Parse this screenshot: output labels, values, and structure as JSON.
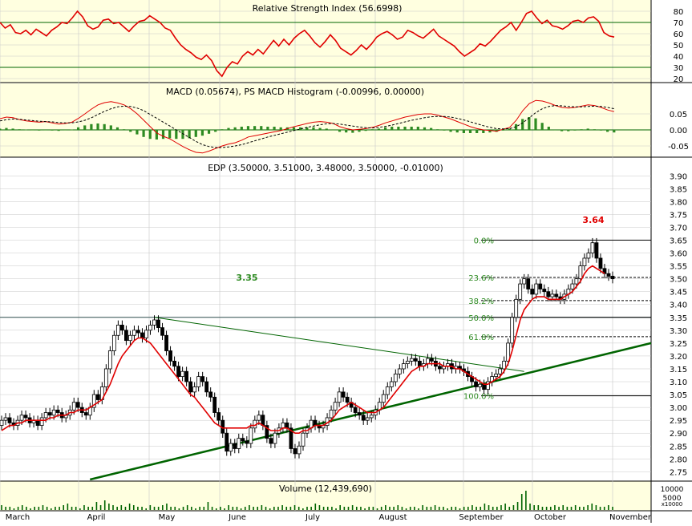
{
  "colors": {
    "panel_bg": "#FFFFE0",
    "main_bg": "#FFFFFF",
    "grid": "#C8C8C8",
    "up_candle": "#FFFFFF",
    "down_candle": "#000000",
    "ma_line": "#E00000",
    "macd_signal": "#000000",
    "macd_hist": "#2E8B22",
    "fib_label": "#2E8B22",
    "trendline": "#006400",
    "volume_bar": "#006400",
    "peak_label": "#E00000"
  },
  "chart_data": [
    {
      "type": "line",
      "panel": "rsi",
      "title": "Relative Strength Index (56.6998)",
      "ylim": [
        20,
        80
      ],
      "yticks": [
        80,
        70,
        60,
        50,
        40,
        30,
        20
      ],
      "reference_lines": [
        30,
        70
      ],
      "series": [
        {
          "values": [
            70,
            65,
            68,
            61,
            60,
            63,
            59,
            64,
            61,
            58,
            63,
            66,
            70,
            69,
            74,
            80,
            75,
            67,
            64,
            66,
            72,
            73,
            69,
            70,
            66,
            62,
            67,
            71,
            72,
            76,
            73,
            70,
            65,
            63,
            56,
            50,
            46,
            43,
            39,
            37,
            41,
            36,
            27,
            22,
            30,
            35,
            33,
            40,
            44,
            41,
            46,
            42,
            48,
            54,
            49,
            55,
            50,
            56,
            60,
            63,
            58,
            52,
            48,
            53,
            59,
            54,
            47,
            44,
            41,
            45,
            50,
            46,
            51,
            57,
            60,
            62,
            59,
            55,
            57,
            63,
            61,
            58,
            56,
            60,
            64,
            58,
            55,
            52,
            49,
            44,
            40,
            43,
            46,
            51,
            49,
            53,
            58,
            63,
            66,
            70,
            63,
            70,
            78,
            80,
            74,
            69,
            72,
            67,
            66,
            64,
            67,
            71,
            72,
            70,
            74,
            75,
            71,
            61,
            58,
            57
          ]
        }
      ],
      "peak_value_label": "",
      "grid": true
    },
    {
      "type": "line",
      "panel": "macd",
      "title": "MACD (0.05674), PS MACD Histogram (-0.00996, 0.00000)",
      "ylim": [
        -0.08,
        0.1
      ],
      "yticks": [
        0.05,
        0.0,
        -0.05
      ],
      "series": [
        {
          "name": "MACD",
          "values": [
            0.035,
            0.04,
            0.038,
            0.032,
            0.028,
            0.026,
            0.024,
            0.026,
            0.022,
            0.018,
            0.02,
            0.024,
            0.036,
            0.05,
            0.065,
            0.078,
            0.085,
            0.088,
            0.084,
            0.078,
            0.066,
            0.05,
            0.03,
            0.01,
            -0.01,
            -0.02,
            -0.028,
            -0.04,
            -0.052,
            -0.062,
            -0.07,
            -0.072,
            -0.066,
            -0.058,
            -0.05,
            -0.044,
            -0.04,
            -0.032,
            -0.022,
            -0.018,
            -0.014,
            -0.01,
            -0.006,
            -0.002,
            0.004,
            0.01,
            0.015,
            0.02,
            0.024,
            0.026,
            0.024,
            0.02,
            0.01,
            0.004,
            0.0,
            0.002,
            0.004,
            0.008,
            0.014,
            0.022,
            0.028,
            0.034,
            0.04,
            0.044,
            0.048,
            0.05,
            0.05,
            0.046,
            0.04,
            0.034,
            0.026,
            0.018,
            0.01,
            0.004,
            0.0,
            -0.002,
            -0.004,
            0.002,
            0.008,
            0.03,
            0.06,
            0.082,
            0.092,
            0.09,
            0.084,
            0.076,
            0.07,
            0.068,
            0.07,
            0.074,
            0.078,
            0.076,
            0.07,
            0.062,
            0.057
          ]
        },
        {
          "name": "PS MACD Histogram",
          "values": [
            0.028,
            0.032,
            0.034,
            0.033,
            0.031,
            0.029,
            0.027,
            0.026,
            0.025,
            0.023,
            0.022,
            0.022,
            0.025,
            0.03,
            0.038,
            0.048,
            0.058,
            0.066,
            0.072,
            0.074,
            0.073,
            0.068,
            0.06,
            0.048,
            0.036,
            0.024,
            0.012,
            0.0,
            -0.012,
            -0.024,
            -0.036,
            -0.046,
            -0.052,
            -0.055,
            -0.055,
            -0.053,
            -0.05,
            -0.046,
            -0.04,
            -0.034,
            -0.028,
            -0.022,
            -0.017,
            -0.012,
            -0.007,
            -0.002,
            0.003,
            0.008,
            0.012,
            0.016,
            0.019,
            0.02,
            0.018,
            0.015,
            0.012,
            0.009,
            0.007,
            0.006,
            0.008,
            0.011,
            0.015,
            0.02,
            0.025,
            0.03,
            0.034,
            0.038,
            0.041,
            0.042,
            0.042,
            0.04,
            0.036,
            0.031,
            0.025,
            0.019,
            0.013,
            0.008,
            0.004,
            0.003,
            0.004,
            0.01,
            0.022,
            0.038,
            0.054,
            0.066,
            0.073,
            0.076,
            0.075,
            0.073,
            0.072,
            0.072,
            0.073,
            0.074,
            0.073,
            0.07,
            0.066
          ]
        }
      ],
      "histogram": [
        0.004,
        0.006,
        0.004,
        0.002,
        0.001,
        -0.001,
        -0.002,
        0.0,
        -0.002,
        -0.003,
        -0.001,
        0.001,
        0.008,
        0.014,
        0.018,
        0.02,
        0.018,
        0.014,
        0.008,
        0.002,
        -0.006,
        -0.014,
        -0.022,
        -0.028,
        -0.03,
        -0.028,
        -0.026,
        -0.028,
        -0.028,
        -0.026,
        -0.022,
        -0.018,
        -0.012,
        -0.006,
        0.002,
        0.006,
        0.008,
        0.01,
        0.012,
        0.012,
        0.012,
        0.01,
        0.01,
        0.008,
        0.008,
        0.008,
        0.008,
        0.008,
        0.008,
        0.006,
        0.004,
        0.0,
        -0.006,
        -0.008,
        -0.009,
        -0.006,
        -0.003,
        0.002,
        0.004,
        0.008,
        0.01,
        0.01,
        0.01,
        0.01,
        0.01,
        0.008,
        0.006,
        0.002,
        -0.002,
        -0.006,
        -0.008,
        -0.01,
        -0.01,
        -0.01,
        -0.01,
        -0.008,
        -0.006,
        -0.002,
        0.004,
        0.018,
        0.034,
        0.04,
        0.036,
        0.022,
        0.01,
        0.0,
        -0.004,
        -0.004,
        -0.002,
        0.002,
        0.004,
        0.002,
        -0.002,
        -0.006,
        -0.008
      ],
      "grid": true
    },
    {
      "type": "candlestick",
      "panel": "price",
      "title": "EDP (3.50000, 3.51000, 3.48000, 3.50000, -0.01000)",
      "ylim": [
        2.72,
        3.96
      ],
      "yticks": [
        3.9,
        3.85,
        3.8,
        3.75,
        3.7,
        3.65,
        3.6,
        3.55,
        3.5,
        3.45,
        3.4,
        3.35,
        3.3,
        3.25,
        3.2,
        3.15,
        3.1,
        3.05,
        3.0,
        2.95,
        2.9,
        2.85,
        2.8,
        2.75
      ],
      "xlabels": [
        "March",
        "April",
        "May",
        "June",
        "July",
        "August",
        "September",
        "October",
        "November"
      ],
      "closes": [
        2.95,
        2.96,
        2.94,
        2.93,
        2.95,
        2.97,
        2.96,
        2.94,
        2.95,
        2.93,
        2.96,
        2.98,
        2.97,
        2.99,
        2.98,
        2.96,
        2.97,
        2.99,
        3.02,
        3.0,
        2.98,
        2.97,
        3.0,
        3.05,
        3.03,
        3.08,
        3.15,
        3.22,
        3.28,
        3.32,
        3.3,
        3.26,
        3.28,
        3.3,
        3.29,
        3.27,
        3.3,
        3.32,
        3.34,
        3.31,
        3.28,
        3.22,
        3.18,
        3.16,
        3.12,
        3.14,
        3.1,
        3.06,
        3.08,
        3.12,
        3.1,
        3.06,
        3.04,
        2.98,
        2.95,
        2.9,
        2.83,
        2.86,
        2.84,
        2.88,
        2.87,
        2.86,
        2.92,
        2.95,
        2.97,
        2.93,
        2.88,
        2.86,
        2.9,
        2.92,
        2.94,
        2.92,
        2.84,
        2.82,
        2.85,
        2.9,
        2.92,
        2.95,
        2.93,
        2.92,
        2.93,
        2.96,
        2.99,
        3.02,
        3.06,
        3.04,
        3.02,
        3.0,
        2.98,
        2.97,
        2.95,
        2.96,
        2.97,
        2.99,
        3.02,
        3.05,
        3.08,
        3.1,
        3.13,
        3.15,
        3.17,
        3.18,
        3.19,
        3.18,
        3.16,
        3.17,
        3.19,
        3.18,
        3.16,
        3.15,
        3.16,
        3.17,
        3.15,
        3.16,
        3.15,
        3.14,
        3.12,
        3.1,
        3.08,
        3.09,
        3.07,
        3.1,
        3.12,
        3.13,
        3.15,
        3.18,
        3.25,
        3.35,
        3.42,
        3.48,
        3.5,
        3.46,
        3.44,
        3.48,
        3.46,
        3.45,
        3.43,
        3.44,
        3.43,
        3.42,
        3.44,
        3.46,
        3.48,
        3.5,
        3.55,
        3.58,
        3.6,
        3.64,
        3.58,
        3.54,
        3.52,
        3.51,
        3.5
      ],
      "opens": [
        2.93,
        2.95,
        2.96,
        2.94,
        2.93,
        2.95,
        2.97,
        2.96,
        2.94,
        2.95,
        2.93,
        2.96,
        2.98,
        2.97,
        2.99,
        2.98,
        2.96,
        2.97,
        2.99,
        3.02,
        3.0,
        2.98,
        2.97,
        3.0,
        3.05,
        3.03,
        3.08,
        3.15,
        3.22,
        3.28,
        3.32,
        3.3,
        3.26,
        3.28,
        3.3,
        3.29,
        3.27,
        3.3,
        3.32,
        3.34,
        3.31,
        3.28,
        3.22,
        3.18,
        3.16,
        3.12,
        3.14,
        3.1,
        3.06,
        3.08,
        3.12,
        3.1,
        3.06,
        3.04,
        2.98,
        2.95,
        2.9,
        2.83,
        2.86,
        2.84,
        2.88,
        2.87,
        2.86,
        2.92,
        2.95,
        2.97,
        2.93,
        2.88,
        2.86,
        2.9,
        2.92,
        2.94,
        2.92,
        2.84,
        2.82,
        2.85,
        2.9,
        2.92,
        2.95,
        2.93,
        2.92,
        2.93,
        2.96,
        2.99,
        3.02,
        3.06,
        3.04,
        3.02,
        3.0,
        2.98,
        2.97,
        2.95,
        2.96,
        2.97,
        2.99,
        3.02,
        3.05,
        3.08,
        3.1,
        3.13,
        3.15,
        3.17,
        3.18,
        3.19,
        3.18,
        3.16,
        3.17,
        3.19,
        3.18,
        3.16,
        3.15,
        3.16,
        3.17,
        3.15,
        3.16,
        3.15,
        3.14,
        3.12,
        3.1,
        3.08,
        3.09,
        3.07,
        3.1,
        3.12,
        3.13,
        3.15,
        3.18,
        3.25,
        3.35,
        3.42,
        3.48,
        3.5,
        3.46,
        3.44,
        3.48,
        3.46,
        3.45,
        3.43,
        3.44,
        3.43,
        3.42,
        3.44,
        3.46,
        3.48,
        3.5,
        3.55,
        3.58,
        3.6,
        3.64,
        3.58,
        3.54,
        3.52,
        3.51
      ],
      "moving_average": [
        2.91,
        2.92,
        2.93,
        2.93,
        2.94,
        2.94,
        2.95,
        2.95,
        2.95,
        2.95,
        2.95,
        2.95,
        2.96,
        2.96,
        2.97,
        2.97,
        2.97,
        2.98,
        2.98,
        2.99,
        2.99,
        2.99,
        3.0,
        3.01,
        3.02,
        3.03,
        3.06,
        3.09,
        3.13,
        3.17,
        3.2,
        3.22,
        3.24,
        3.26,
        3.27,
        3.27,
        3.26,
        3.25,
        3.23,
        3.21,
        3.19,
        3.17,
        3.15,
        3.13,
        3.11,
        3.09,
        3.07,
        3.05,
        3.04,
        3.02,
        3.0,
        2.98,
        2.96,
        2.94,
        2.93,
        2.92,
        2.92,
        2.92,
        2.92,
        2.92,
        2.92,
        2.92,
        2.93,
        2.93,
        2.94,
        2.93,
        2.92,
        2.91,
        2.91,
        2.91,
        2.92,
        2.92,
        2.91,
        2.9,
        2.9,
        2.91,
        2.91,
        2.92,
        2.93,
        2.93,
        2.93,
        2.94,
        2.95,
        2.97,
        2.99,
        3.0,
        3.01,
        3.02,
        3.01,
        3.0,
        2.99,
        2.98,
        2.98,
        2.98,
        2.99,
        3.0,
        3.02,
        3.04,
        3.06,
        3.08,
        3.1,
        3.12,
        3.14,
        3.15,
        3.16,
        3.16,
        3.17,
        3.17,
        3.17,
        3.17,
        3.16,
        3.16,
        3.16,
        3.15,
        3.15,
        3.14,
        3.13,
        3.12,
        3.11,
        3.1,
        3.09,
        3.09,
        3.1,
        3.11,
        3.12,
        3.14,
        3.17,
        3.22,
        3.28,
        3.34,
        3.38,
        3.4,
        3.42,
        3.43,
        3.43,
        3.43,
        3.42,
        3.42,
        3.42,
        3.42,
        3.43,
        3.44,
        3.45,
        3.47,
        3.49,
        3.52,
        3.54,
        3.55,
        3.54,
        3.53,
        3.52
      ],
      "resistance_level": {
        "value": 3.35,
        "label": "3.35"
      },
      "peak_label": "3.64",
      "fibonacci": [
        {
          "label": "0.0%",
          "value": 3.65
        },
        {
          "label": "23.6%",
          "value": 3.505
        },
        {
          "label": "38.2%",
          "value": 3.415
        },
        {
          "label": "50.0%",
          "value": 3.35
        },
        {
          "label": "61.8%",
          "value": 3.275
        },
        {
          "label": "100.0%",
          "value": 3.045
        }
      ],
      "trendlines": [
        {
          "name": "upper",
          "from": {
            "x_index": 38,
            "y": 3.35
          },
          "to": {
            "x_index": 130,
            "y": 3.14
          }
        },
        {
          "name": "lower",
          "from": {
            "x_index": 22,
            "y": 2.72
          },
          "to": {
            "x_index": 166,
            "y": 3.25
          }
        }
      ],
      "grid": true
    },
    {
      "type": "bar",
      "panel": "volume",
      "title": "Volume (12,439,690)",
      "yticks_label": [
        "10000",
        "5000",
        "x10000"
      ],
      "values": [
        3,
        2,
        2,
        1,
        2,
        3,
        2,
        1,
        2,
        2,
        3,
        2,
        1,
        2,
        2,
        3,
        4,
        2,
        2,
        1,
        3,
        2,
        2,
        5,
        3,
        6,
        4,
        3,
        2,
        3,
        2,
        4,
        3,
        2,
        2,
        1,
        3,
        2,
        2,
        3,
        4,
        2,
        2,
        1,
        2,
        3,
        2,
        1,
        2,
        2,
        5,
        2,
        1,
        2,
        1,
        3,
        2,
        2,
        1,
        2,
        3,
        2,
        2,
        3,
        2,
        1,
        2,
        2,
        3,
        2,
        2,
        3,
        2,
        1,
        2,
        2,
        4,
        3,
        2,
        2,
        2,
        1,
        3,
        2,
        2,
        3,
        2,
        2,
        1,
        2,
        2,
        1,
        2,
        3,
        2,
        2,
        3,
        2,
        1,
        2,
        2,
        1,
        3,
        2,
        2,
        3,
        2,
        2,
        1,
        2,
        2,
        1,
        2,
        2,
        3,
        2,
        2,
        4,
        3,
        2,
        2,
        3,
        4,
        2,
        3,
        5,
        10,
        12,
        4,
        3,
        3,
        2,
        2,
        2,
        3,
        2,
        3,
        2,
        2,
        3,
        2,
        2,
        3,
        4,
        3,
        2,
        2,
        3,
        2
      ]
    }
  ]
}
